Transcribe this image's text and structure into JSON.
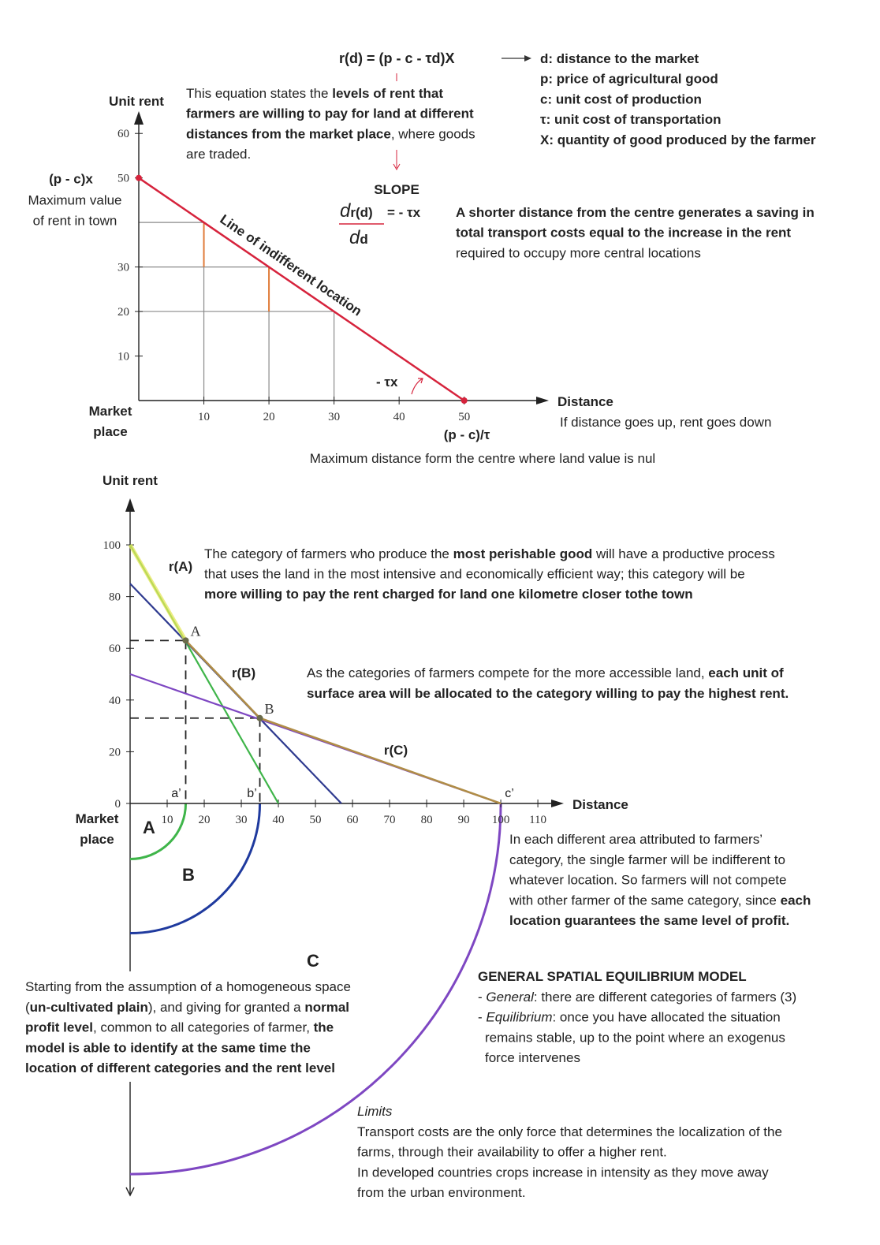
{
  "chart_data": [
    {
      "type": "line",
      "formula": "r(d) = (p - c - τd)X",
      "definitions": [
        "d: distance to the market",
        "p: price of agricultural good",
        "c: unit cost of production",
        "τ: unit cost of transportation",
        "X: quantity of good produced by the farmer"
      ],
      "slope": {
        "label": "SLOPE",
        "numerator": [
          {
            "text": "d",
            "style": "italic"
          },
          "r(d)"
        ],
        "rhs": "= - τx",
        "denominator": [
          {
            "text": "d",
            "style": "italic"
          },
          "d"
        ]
      },
      "y_label": "Unit rent",
      "x_label": "Distance",
      "origin_label": [
        "Market",
        "place"
      ],
      "y_intercept_label": "(p - c)x",
      "y_intercept_note": [
        "Maximum value",
        "of rent in town"
      ],
      "x_intercept_label": "(p - c)/τ",
      "x_intercept_note": "Maximum distance form the centre where land value is nul",
      "x_note": "If distance goes up, rent goes down",
      "slope_label": "- τx",
      "accent": "#d6233c",
      "xlim": [
        0,
        63
      ],
      "ylim": [
        0,
        65
      ],
      "xticks": [
        10,
        20,
        30,
        40,
        50
      ],
      "yticks": [
        10,
        20,
        30,
        50,
        60
      ],
      "series": [
        {
          "name": "Line of indifferent location",
          "color": "#d6233c",
          "x": [
            0,
            50
          ],
          "values": [
            50,
            0
          ]
        }
      ],
      "guides": {
        "x": [
          10,
          20,
          30
        ],
        "values": [
          40,
          30,
          20
        ],
        "color": "#8a8a8a",
        "drop_color": "#e07b39"
      },
      "annotations": [
        {
          "lines": [
            [
              "This equation states the ",
              {
                "text": "levels of rent that",
                "style": "bold"
              }
            ],
            [
              {
                "text": "farmers are willing to pay for land at different",
                "style": "bold"
              }
            ],
            [
              {
                "text": "distances from the market place",
                "style": "bold"
              },
              ", where goods"
            ],
            [
              "are traded."
            ]
          ]
        },
        {
          "lines": [
            [
              {
                "text": "A shorter distance from the centre generates a saving in",
                "style": "bold"
              }
            ],
            [
              {
                "text": "total transport costs equal to the increase in the rent",
                "style": "bold"
              }
            ],
            [
              "required to occupy more central locations"
            ]
          ]
        }
      ]
    },
    {
      "type": "line",
      "y_label": "Unit rent",
      "x_label": "Distance",
      "origin_label": [
        "Market",
        "place"
      ],
      "xlim": [
        0,
        117
      ],
      "ylim": [
        0,
        118
      ],
      "xticks": [
        10,
        20,
        30,
        40,
        50,
        60,
        70,
        80,
        90,
        100,
        110
      ],
      "yticks": [
        0,
        20,
        40,
        60,
        80,
        100
      ],
      "series": [
        {
          "name": "r(A)",
          "color": "#3fb54a",
          "x": [
            0,
            40
          ],
          "values": [
            100,
            0
          ]
        },
        {
          "name": "r(B)",
          "color": "#2e3a8f",
          "x": [
            0,
            57
          ],
          "values": [
            85,
            0
          ]
        },
        {
          "name": "r(C)",
          "color": "#7e47c2",
          "x": [
            0,
            100
          ],
          "values": [
            50,
            0
          ]
        }
      ],
      "envelope": {
        "x": [
          0,
          15,
          35,
          100
        ],
        "values": [
          100,
          63,
          33,
          0
        ],
        "colors": [
          "#e4e65a",
          "#b08d47",
          "#b08d47"
        ]
      },
      "points": [
        {
          "label": "A",
          "x": 15,
          "value": 63
        },
        {
          "label": "B",
          "x": 35,
          "value": 33
        }
      ],
      "boundaries": [
        {
          "label": "a’",
          "x": 15
        },
        {
          "label": "b’",
          "x": 35
        },
        {
          "label": "c’",
          "x": 100
        }
      ],
      "zones": [
        {
          "label": "A",
          "color": "#3fb54a"
        },
        {
          "label": "B",
          "color": "#1f3a9e"
        },
        {
          "label": "C",
          "color": "#7e47c2"
        }
      ],
      "annotations": [
        {
          "lines": [
            [
              "The category of farmers who produce the ",
              {
                "text": "most perishable good",
                "style": "bold"
              },
              " will have a productive process"
            ],
            [
              "that uses the land in the most intensive and economically efficient way; this category will be"
            ],
            [
              {
                "text": "more willing to pay the rent charged for land one kilometre closer tothe town",
                "style": "bold"
              }
            ]
          ]
        },
        {
          "lines": [
            [
              "As the categories of farmers compete for the more accessible land, ",
              {
                "text": "each unit of",
                "style": "bold"
              }
            ],
            [
              {
                "text": "surface area will be allocated to the category willing to pay the highest rent.",
                "style": "bold"
              }
            ]
          ]
        },
        {
          "lines": [
            [
              "In each different area attributed to farmers’"
            ],
            [
              "category, the single farmer will be indifferent to"
            ],
            [
              "whatever location. So farmers will not compete"
            ],
            [
              "with other farmer of the same category, since ",
              {
                "text": "each",
                "style": "bold"
              }
            ],
            [
              {
                "text": "location guarantees the same level of profit.",
                "style": "bold"
              }
            ]
          ]
        },
        {
          "lines": [
            [
              {
                "text": "GENERAL SPATIAL EQUILIBRIUM MODEL",
                "style": "bold"
              }
            ],
            [
              "- ",
              {
                "text": "General",
                "style": "italic"
              },
              ": there are different categories of farmers (3)"
            ],
            [
              "- ",
              {
                "text": "Equilibrium",
                "style": "italic"
              },
              ": once you have allocated the situation"
            ],
            [
              "remains stable, up to the point where an exogenus"
            ],
            [
              "force intervenes"
            ]
          ]
        },
        {
          "lines": [
            [
              "Starting from the assumption of a homogeneous space"
            ],
            [
              "(",
              {
                "text": "un-cultivated plain",
                "style": "bold"
              },
              "), and giving for granted a ",
              {
                "text": "normal",
                "style": "bold"
              }
            ],
            [
              {
                "text": "profit level",
                "style": "bold"
              },
              ", common to all categories of farmer, ",
              {
                "text": "the",
                "style": "bold"
              }
            ],
            [
              {
                "text": "model is able to identify at the same time the",
                "style": "bold"
              }
            ],
            [
              {
                "text": "location of different categories and the rent level",
                "style": "bold"
              }
            ]
          ]
        },
        {
          "lines": [
            [
              {
                "text": "Limits",
                "style": "italic"
              }
            ],
            [
              "Transport costs are the only force that determines the localization of the"
            ],
            [
              "farms, through their availability to offer a higher rent."
            ],
            [
              "In developed countries crops increase in intensity as they move away"
            ],
            [
              "from the urban environment."
            ]
          ]
        }
      ]
    }
  ]
}
